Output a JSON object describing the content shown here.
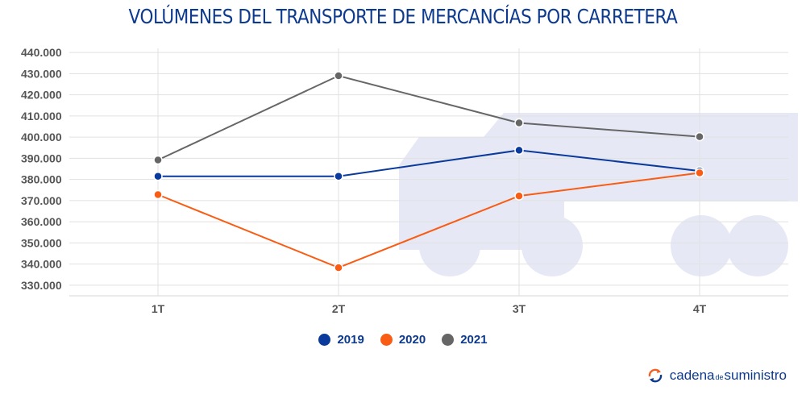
{
  "title": "VOLÚMENES DEL TRANSPORTE DE MERCANCÍAS POR CARRETERA",
  "brand": {
    "word1": "cadena",
    "word2": "de",
    "word3": "suministro",
    "icon": "refresh-arrows-icon",
    "icon_colors": [
      "#f26122",
      "#0d3a8e"
    ]
  },
  "watermark": {
    "icon": "truck-icon",
    "color": "#e6e9f5"
  },
  "chart_data": {
    "type": "line",
    "title": "VOLÚMENES DEL TRANSPORTE DE MERCANCÍAS POR CARRETERA",
    "xlabel": "",
    "ylabel": "",
    "categories": [
      "1T",
      "2T",
      "3T",
      "4T"
    ],
    "ylim": [
      325000,
      445000
    ],
    "yticks": [
      330000,
      340000,
      350000,
      360000,
      370000,
      380000,
      390000,
      400000,
      410000,
      420000,
      430000,
      440000
    ],
    "ytick_labels": [
      "330.000",
      "340.000",
      "350.000",
      "360.000",
      "370.000",
      "380.000",
      "390.000",
      "400.000",
      "410.000",
      "420.000",
      "430.000",
      "440.000"
    ],
    "grid": true,
    "legend_position": "bottom-center",
    "series": [
      {
        "name": "2019",
        "color": "#0a3a9c",
        "values": [
          381500,
          381500,
          393800,
          384000
        ]
      },
      {
        "name": "2020",
        "color": "#f95c14",
        "values": [
          372800,
          338300,
          372200,
          383100
        ]
      },
      {
        "name": "2021",
        "color": "#666666",
        "values": [
          389200,
          429000,
          406700,
          400200
        ]
      }
    ]
  }
}
